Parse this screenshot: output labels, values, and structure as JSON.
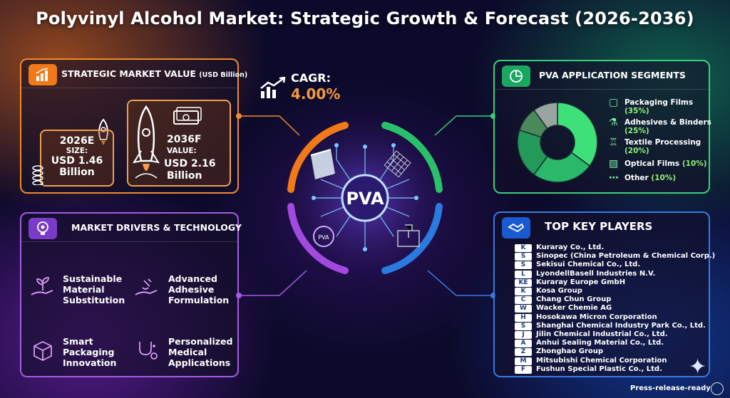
{
  "title": "Polyvinyl Alcohol Market: Strategic Growth & Forecast (2026-2036)",
  "cagr": {
    "label": "CAGR:",
    "value": "4.00%"
  },
  "center_label": "PVA",
  "market_value": {
    "header": "STRATEGIC MARKET VALUE",
    "unit": "(USD Billion)",
    "card_2026": {
      "year": "2026E",
      "label": "SIZE:",
      "amount_line1": "USD 1.46",
      "amount_line2": "Billion"
    },
    "card_2036": {
      "year": "2036F",
      "label": "VALUE:",
      "amount_line1": "USD 2.16",
      "amount_line2": "Billion"
    }
  },
  "drivers": {
    "header": "MARKET DRIVERS & TECHNOLOGY",
    "items": [
      {
        "line1": "Sustainable",
        "line2": "Material",
        "line3": "Substitution",
        "icon": "plant-hand-icon"
      },
      {
        "line1": "Advanced",
        "line2": "Adhesive",
        "line3": "Formulation",
        "icon": "adhesive-hand-icon"
      },
      {
        "line1": "Smart",
        "line2": "Packaging",
        "line3": "Innovation",
        "icon": "package-icon"
      },
      {
        "line1": "Personalized",
        "line2": "Medical",
        "line3": "Applications",
        "icon": "stethoscope-icon"
      }
    ]
  },
  "segments": {
    "header": "PVA APPLICATION SEGMENTS",
    "items": [
      {
        "name": "Packaging Films",
        "pct": "(35%)"
      },
      {
        "name": "Adhesives & Binders",
        "pct": "(25%)"
      },
      {
        "name": "Textile Processing",
        "pct": "(20%)"
      },
      {
        "name": "Optical Films",
        "pct": "(10%)"
      },
      {
        "name": "Other",
        "pct": "(10%)"
      }
    ],
    "colors": [
      "#3ee07a",
      "#2ab86a",
      "#239a5a",
      "#4a8a5a",
      "#9aa4a0"
    ],
    "values": [
      35,
      25,
      20,
      10,
      10
    ]
  },
  "players": {
    "header": "TOP KEY PLAYERS",
    "items": [
      {
        "logo": "K",
        "name": "Kuraray Co., Ltd."
      },
      {
        "logo": "S",
        "name": "Sinopec (China Petroleum & Chemical Corp.)"
      },
      {
        "logo": "S",
        "name": "Sekisui Chemical Co., Ltd."
      },
      {
        "logo": "L",
        "name": "LyondellBasell Industries N.V."
      },
      {
        "logo": "KE",
        "name": "Kuraray Europe GmbH"
      },
      {
        "logo": "K",
        "name": "Kosa Group"
      },
      {
        "logo": "C",
        "name": "Chang Chun Group"
      },
      {
        "logo": "W",
        "name": "Wacker Chemie AG"
      },
      {
        "logo": "H",
        "name": "Hosokawa Micron Corporation"
      },
      {
        "logo": "S",
        "name": "Shanghai Chemical Industry Park Co., Ltd."
      },
      {
        "logo": "J",
        "name": "Jilin Chemical Industrial Co., Ltd."
      },
      {
        "logo": "A",
        "name": "Anhui Sealing Material Co., Ltd."
      },
      {
        "logo": "Z",
        "name": "Zhonghao Group"
      },
      {
        "logo": "M",
        "name": "Mitsubishi Chemical Corporation"
      },
      {
        "logo": "F",
        "name": "Fushun Special Plastic Co., Ltd."
      }
    ]
  },
  "footer": "Press-release-ready"
}
